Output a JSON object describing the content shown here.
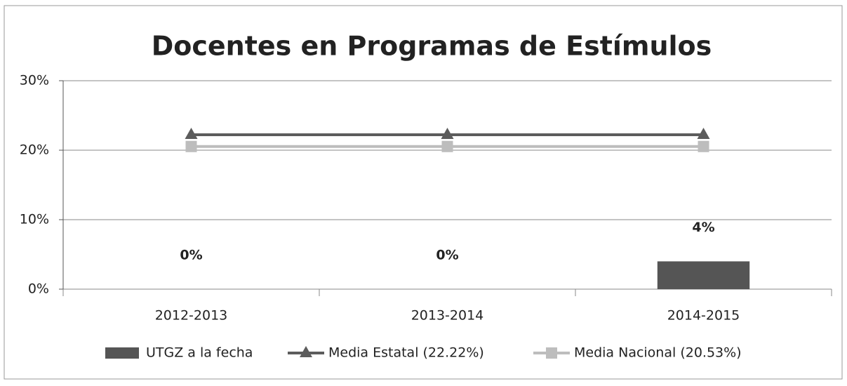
{
  "chart_data": {
    "type": "bar",
    "title": "Docentes en Programas de Estímulos",
    "categories": [
      "2012-2013",
      "2013-2014",
      "2014-2015"
    ],
    "series": [
      {
        "name": "UTGZ a la fecha",
        "type": "bar",
        "color": "#555555",
        "values": [
          0,
          0,
          4
        ],
        "value_labels": [
          "0%",
          "0%",
          "4%"
        ]
      },
      {
        "name": "Media Estatal (22.22%)",
        "type": "line",
        "marker": "triangle",
        "color": "#5c5c5c",
        "values": [
          22.22,
          22.22,
          22.22
        ]
      },
      {
        "name": "Media Nacional (20.53%)",
        "type": "line",
        "marker": "square",
        "color": "#bdbdbd",
        "values": [
          20.53,
          20.53,
          20.53
        ]
      }
    ],
    "ylim": [
      0,
      30
    ],
    "yticks": [
      {
        "value": 0,
        "label": "0%"
      },
      {
        "value": 10,
        "label": "10%"
      },
      {
        "value": 20,
        "label": "20%"
      },
      {
        "value": 30,
        "label": "30%"
      }
    ],
    "grid": true,
    "legend": "bottom"
  }
}
